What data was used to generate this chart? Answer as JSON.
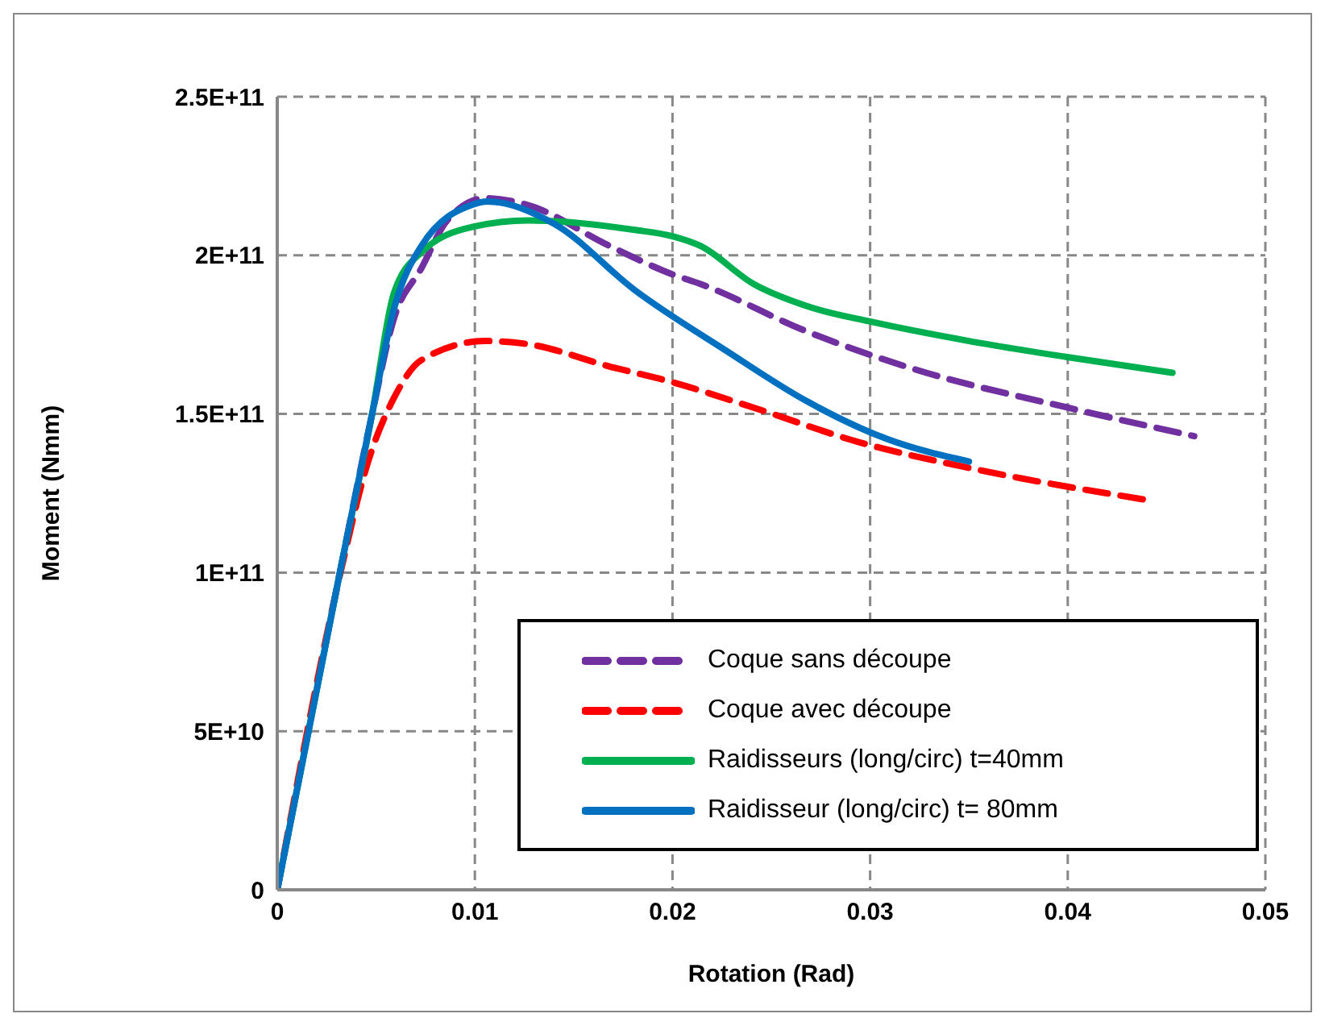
{
  "chart_data": {
    "type": "line",
    "xlabel": "Rotation (Rad)",
    "ylabel": "Moment (Nmm)",
    "xlim": [
      0,
      0.05
    ],
    "xticks": [
      0,
      0.01,
      0.02,
      0.03,
      0.04,
      0.05
    ],
    "ylim": [
      0,
      250000000000
    ],
    "yticks": [
      {
        "value": 0,
        "label": "0"
      },
      {
        "value": 50000000000,
        "label": "5E+10"
      },
      {
        "value": 100000000000,
        "label": "1E+11"
      },
      {
        "value": 150000000000,
        "label": "1.5E+11"
      },
      {
        "value": 200000000000,
        "label": "2E+11"
      },
      {
        "value": 250000000000,
        "label": "2.5E+11"
      }
    ],
    "grid": true,
    "legend": "bottom right",
    "marker": "none",
    "series": [
      {
        "name": "Coque sans découpe",
        "color": "#7030a0",
        "line_style": "dashed",
        "x": [
          0,
          0.0032,
          0.0048,
          0.0059,
          0.0073,
          0.0086,
          0.0105,
          0.0126,
          0.0168,
          0.02,
          0.0214,
          0.0268,
          0.0323,
          0.04,
          0.0464
        ],
        "values": [
          0,
          101000000000,
          150000000000,
          180000000000,
          196000000000,
          211000000000,
          218000000000,
          216000000000,
          203000000000,
          194000000000,
          191000000000,
          176000000000,
          164000000000,
          152000000000,
          143000000000
        ]
      },
      {
        "name": "Coque avec découpe",
        "color": "#ff0000",
        "line_style": "dashed",
        "x": [
          0,
          0.0032,
          0.0046,
          0.0059,
          0.0073,
          0.0105,
          0.0127,
          0.0168,
          0.02,
          0.0241,
          0.0295,
          0.035,
          0.0439
        ],
        "values": [
          0,
          100000000000,
          135000000000,
          155000000000,
          167000000000,
          173000000000,
          172000000000,
          165000000000,
          160000000000,
          152000000000,
          141000000000,
          133000000000,
          123000000000
        ]
      },
      {
        "name": "Raidisseurs (long/circ) t=40mm",
        "color": "#00b050",
        "line_style": "solid",
        "x": [
          0,
          0.0032,
          0.0048,
          0.0059,
          0.0073,
          0.0099,
          0.0127,
          0.0181,
          0.02,
          0.0214,
          0.0241,
          0.0268,
          0.0301,
          0.035,
          0.0399,
          0.0453
        ],
        "values": [
          0,
          101000000000,
          150000000000,
          188000000000,
          201000000000,
          209000000000,
          211000000000,
          208000000000,
          206000000000,
          203000000000,
          191000000000,
          184000000000,
          179000000000,
          173000000000,
          168000000000,
          163000000000
        ]
      },
      {
        "name": "Raidisseur (long/circ) t= 80mm",
        "color": "#0070c0",
        "line_style": "solid",
        "x": [
          0,
          0.0032,
          0.0048,
          0.0059,
          0.0073,
          0.0099,
          0.0106,
          0.014,
          0.0181,
          0.0227,
          0.0268,
          0.0309,
          0.035
        ],
        "values": [
          0,
          101000000000,
          150000000000,
          183000000000,
          203000000000,
          216000000000,
          217000000000,
          210000000000,
          189000000000,
          170000000000,
          154000000000,
          142000000000,
          135000000000
        ]
      }
    ]
  }
}
